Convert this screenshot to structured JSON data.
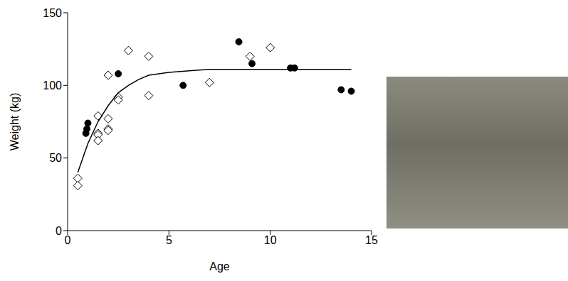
{
  "chart_data": {
    "type": "scatter",
    "xlabel": "Age",
    "ylabel": "Weight (kg)",
    "xlim": [
      0,
      15
    ],
    "ylim": [
      0,
      150
    ],
    "xticks": [
      0,
      5,
      10,
      15
    ],
    "yticks": [
      0,
      50,
      100,
      150
    ],
    "grid": false,
    "series": [
      {
        "marker": "circle",
        "color": "#000000",
        "x": [
          0.9,
          0.95,
          1.0,
          2.5,
          5.7,
          8.45,
          9.1,
          11.0,
          11.2,
          13.5,
          14.0
        ],
        "values": [
          67,
          70,
          74,
          108,
          100,
          130,
          115,
          112,
          112,
          97,
          96
        ]
      },
      {
        "marker": "diamond",
        "color": "#000000",
        "x": [
          0.5,
          0.5,
          1.5,
          1.5,
          1.5,
          1.5,
          2.0,
          2.0,
          2.0,
          2.0,
          2.5,
          2.5,
          3.0,
          4.0,
          4.0,
          7.0,
          9.0,
          10.0
        ],
        "values": [
          36,
          31,
          79,
          67,
          66,
          62,
          107,
          77,
          70,
          69,
          92,
          90,
          124,
          120,
          93,
          102,
          120,
          126
        ]
      },
      {
        "type": "line",
        "color": "#000000",
        "x": [
          0.5,
          1.0,
          1.5,
          2.0,
          2.5,
          3.0,
          3.5,
          4.0,
          4.5,
          5.0,
          6.0,
          7.0,
          8.0,
          10.0,
          12.0,
          14.0
        ],
        "values": [
          40,
          60,
          75,
          86,
          95,
          100,
          104,
          107,
          108,
          109,
          110,
          111,
          111,
          111,
          111,
          111
        ]
      }
    ]
  }
}
